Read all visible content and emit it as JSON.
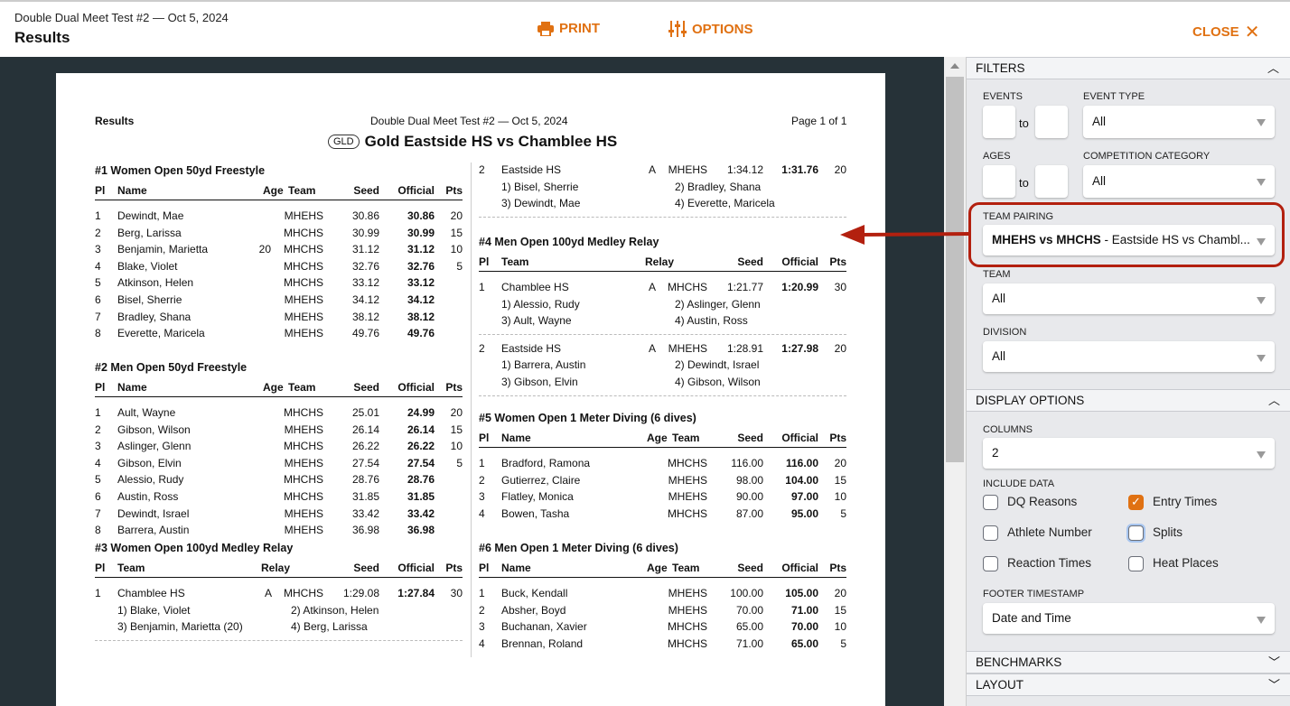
{
  "header": {
    "meet": "Double Dual Meet Test #2 — Oct 5, 2024",
    "title": "Results",
    "print": "PRINT",
    "options": "OPTIONS",
    "close": "CLOSE",
    "accent": "#e07112"
  },
  "document": {
    "left": "Results",
    "center": "Double Dual Meet Test #2 — Oct 5, 2024",
    "page": "Page 1 of 1",
    "badge": "GLD",
    "title": "Gold Eastside HS vs Chamblee HS",
    "ind_headers": [
      "Pl",
      "Name",
      "Age",
      "Team",
      "Seed",
      "Official",
      "Pts"
    ],
    "relay_headers": [
      "Pl",
      "Team",
      "Relay",
      "Seed",
      "Official",
      "Pts"
    ],
    "events": [
      {
        "title": "#1 Women Open 50yd Freestyle",
        "type": "ind",
        "rows": [
          [
            "1",
            "Dewindt, Mae",
            "",
            "MHEHS",
            "30.86",
            "30.86",
            "20"
          ],
          [
            "2",
            "Berg, Larissa",
            "",
            "MHCHS",
            "30.99",
            "30.99",
            "15"
          ],
          [
            "3",
            "Benjamin, Marietta",
            "20",
            "MHCHS",
            "31.12",
            "31.12",
            "10"
          ],
          [
            "4",
            "Blake, Violet",
            "",
            "MHCHS",
            "32.76",
            "32.76",
            "5"
          ],
          [
            "5",
            "Atkinson, Helen",
            "",
            "MHCHS",
            "33.12",
            "33.12",
            ""
          ],
          [
            "6",
            "Bisel, Sherrie",
            "",
            "MHEHS",
            "34.12",
            "34.12",
            ""
          ],
          [
            "7",
            "Bradley, Shana",
            "",
            "MHEHS",
            "38.12",
            "38.12",
            ""
          ],
          [
            "8",
            "Everette, Maricela",
            "",
            "MHEHS",
            "49.76",
            "49.76",
            ""
          ]
        ]
      },
      {
        "title": "#2 Men Open 50yd Freestyle",
        "type": "ind",
        "rows": [
          [
            "1",
            "Ault, Wayne",
            "",
            "MHCHS",
            "25.01",
            "24.99",
            "20"
          ],
          [
            "2",
            "Gibson, Wilson",
            "",
            "MHEHS",
            "26.14",
            "26.14",
            "15"
          ],
          [
            "3",
            "Aslinger, Glenn",
            "",
            "MHCHS",
            "26.22",
            "26.22",
            "10"
          ],
          [
            "4",
            "Gibson, Elvin",
            "",
            "MHEHS",
            "27.54",
            "27.54",
            "5"
          ],
          [
            "5",
            "Alessio, Rudy",
            "",
            "MHCHS",
            "28.76",
            "28.76",
            ""
          ],
          [
            "6",
            "Austin, Ross",
            "",
            "MHCHS",
            "31.85",
            "31.85",
            ""
          ],
          [
            "7",
            "Dewindt, Israel",
            "",
            "MHEHS",
            "33.42",
            "33.42",
            ""
          ],
          [
            "8",
            "Barrera, Austin",
            "",
            "MHEHS",
            "36.98",
            "36.98",
            ""
          ]
        ]
      },
      {
        "title": "#3 Women Open 100yd Medley Relay",
        "type": "relay",
        "rows": [
          {
            "pl": "1",
            "team": "Chamblee HS",
            "relay": "A",
            "code": "MHCHS",
            "seed": "1:29.08",
            "official": "1:27.84",
            "pts": "30",
            "swimmers": [
              "1) Blake, Violet",
              "2) Atkinson, Helen",
              "3) Benjamin, Marietta (20)",
              "4) Berg, Larissa"
            ]
          }
        ]
      },
      {
        "title": "",
        "type": "relay-cont",
        "rows": [
          {
            "pl": "2",
            "team": "Eastside HS",
            "relay": "A",
            "code": "MHEHS",
            "seed": "1:34.12",
            "official": "1:31.76",
            "pts": "20",
            "swimmers": [
              "1) Bisel, Sherrie",
              "2) Bradley, Shana",
              "3) Dewindt, Mae",
              "4) Everette, Maricela"
            ]
          }
        ]
      },
      {
        "title": "#4 Men Open 100yd Medley Relay",
        "type": "relay",
        "rows": [
          {
            "pl": "1",
            "team": "Chamblee HS",
            "relay": "A",
            "code": "MHCHS",
            "seed": "1:21.77",
            "official": "1:20.99",
            "pts": "30",
            "swimmers": [
              "1) Alessio, Rudy",
              "2) Aslinger, Glenn",
              "3) Ault, Wayne",
              "4) Austin, Ross"
            ]
          },
          {
            "pl": "2",
            "team": "Eastside HS",
            "relay": "A",
            "code": "MHEHS",
            "seed": "1:28.91",
            "official": "1:27.98",
            "pts": "20",
            "swimmers": [
              "1) Barrera, Austin",
              "2) Dewindt, Israel",
              "3) Gibson, Elvin",
              "4) Gibson, Wilson"
            ]
          }
        ]
      },
      {
        "title": "#5 Women Open 1 Meter Diving (6 dives)",
        "type": "ind",
        "rows": [
          [
            "1",
            "Bradford, Ramona",
            "",
            "MHCHS",
            "116.00",
            "116.00",
            "20"
          ],
          [
            "2",
            "Gutierrez, Claire",
            "",
            "MHEHS",
            "98.00",
            "104.00",
            "15"
          ],
          [
            "3",
            "Flatley, Monica",
            "",
            "MHEHS",
            "90.00",
            "97.00",
            "10"
          ],
          [
            "4",
            "Bowen, Tasha",
            "",
            "MHCHS",
            "87.00",
            "95.00",
            "5"
          ]
        ]
      },
      {
        "title": "#6 Men Open 1 Meter Diving (6 dives)",
        "type": "ind",
        "rows": [
          [
            "1",
            "Buck, Kendall",
            "",
            "MHEHS",
            "100.00",
            "105.00",
            "20"
          ],
          [
            "2",
            "Absher, Boyd",
            "",
            "MHEHS",
            "70.00",
            "71.00",
            "15"
          ],
          [
            "3",
            "Buchanan, Xavier",
            "",
            "MHCHS",
            "65.00",
            "70.00",
            "10"
          ],
          [
            "4",
            "Brennan, Roland",
            "",
            "MHCHS",
            "71.00",
            "65.00",
            "5"
          ]
        ]
      }
    ]
  },
  "sidebar": {
    "filters": {
      "title": "FILTERS",
      "events_label": "EVENTS",
      "to": "to",
      "event_type_label": "EVENT TYPE",
      "event_type": "All",
      "ages_label": "AGES",
      "comp_cat_label": "COMPETITION CATEGORY",
      "comp_cat": "All",
      "team_pairing_label": "TEAM PAIRING",
      "team_pairing_bold": "MHEHS vs MHCHS",
      "team_pairing_rest": " - Eastside HS vs Chambl...",
      "team_label": "TEAM",
      "team": "All",
      "division_label": "DIVISION",
      "division": "All"
    },
    "display": {
      "title": "DISPLAY OPTIONS",
      "columns_label": "COLUMNS",
      "columns": "2",
      "include_label": "INCLUDE DATA",
      "checkboxes": [
        {
          "label": "DQ Reasons",
          "checked": false
        },
        {
          "label": "Entry Times",
          "checked": true
        },
        {
          "label": "Athlete Number",
          "checked": false
        },
        {
          "label": "Splits",
          "checked": false
        },
        {
          "label": "Reaction Times",
          "checked": false
        },
        {
          "label": "Heat Places",
          "checked": false
        }
      ],
      "footer_label": "FOOTER TIMESTAMP",
      "footer": "Date and Time"
    },
    "benchmarks": "BENCHMARKS",
    "layout": "LAYOUT"
  }
}
